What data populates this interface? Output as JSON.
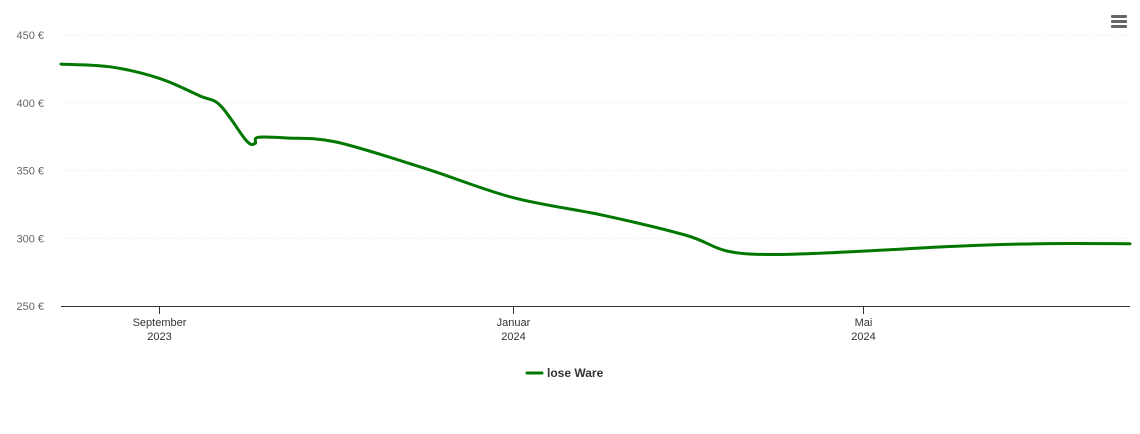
{
  "chart_data": {
    "type": "line",
    "title": "",
    "xlabel": "",
    "ylabel": "",
    "ylim": [
      250,
      450
    ],
    "yticks": [
      {
        "value": 250,
        "label": "250 €"
      },
      {
        "value": 300,
        "label": "300 €"
      },
      {
        "value": 350,
        "label": "350 €"
      },
      {
        "value": 400,
        "label": "400 €"
      },
      {
        "value": 450,
        "label": "450 €"
      }
    ],
    "xlim": [
      "2023-07-29",
      "2024-08-01"
    ],
    "xticks": [
      {
        "date": "2023-09-01",
        "label": [
          "September",
          "2023"
        ]
      },
      {
        "date": "2024-01-01",
        "label": [
          "Januar",
          "2024"
        ]
      },
      {
        "date": "2024-05-01",
        "label": [
          "Mai",
          "2024"
        ]
      }
    ],
    "grid": true,
    "legend_position": "bottom-center",
    "series": [
      {
        "name": "lose Ware",
        "color": "#007700",
        "points": [
          {
            "x": "2023-07-29",
            "y": 428.5
          },
          {
            "x": "2023-08-15",
            "y": 426.5
          },
          {
            "x": "2023-09-01",
            "y": 418
          },
          {
            "x": "2023-09-15",
            "y": 405
          },
          {
            "x": "2023-09-22",
            "y": 398
          },
          {
            "x": "2023-10-01",
            "y": 372
          },
          {
            "x": "2023-10-04",
            "y": 370
          },
          {
            "x": "2023-10-05",
            "y": 374.5
          },
          {
            "x": "2023-10-15",
            "y": 374
          },
          {
            "x": "2023-11-01",
            "y": 371
          },
          {
            "x": "2023-12-01",
            "y": 352
          },
          {
            "x": "2024-01-01",
            "y": 330
          },
          {
            "x": "2024-02-01",
            "y": 317
          },
          {
            "x": "2024-03-01",
            "y": 302
          },
          {
            "x": "2024-03-15",
            "y": 290.5
          },
          {
            "x": "2024-04-01",
            "y": 288
          },
          {
            "x": "2024-05-01",
            "y": 290.5
          },
          {
            "x": "2024-06-01",
            "y": 294
          },
          {
            "x": "2024-07-01",
            "y": 296
          },
          {
            "x": "2024-08-01",
            "y": 296
          }
        ]
      }
    ]
  },
  "menu": {
    "icon": "hamburger-menu-icon"
  }
}
